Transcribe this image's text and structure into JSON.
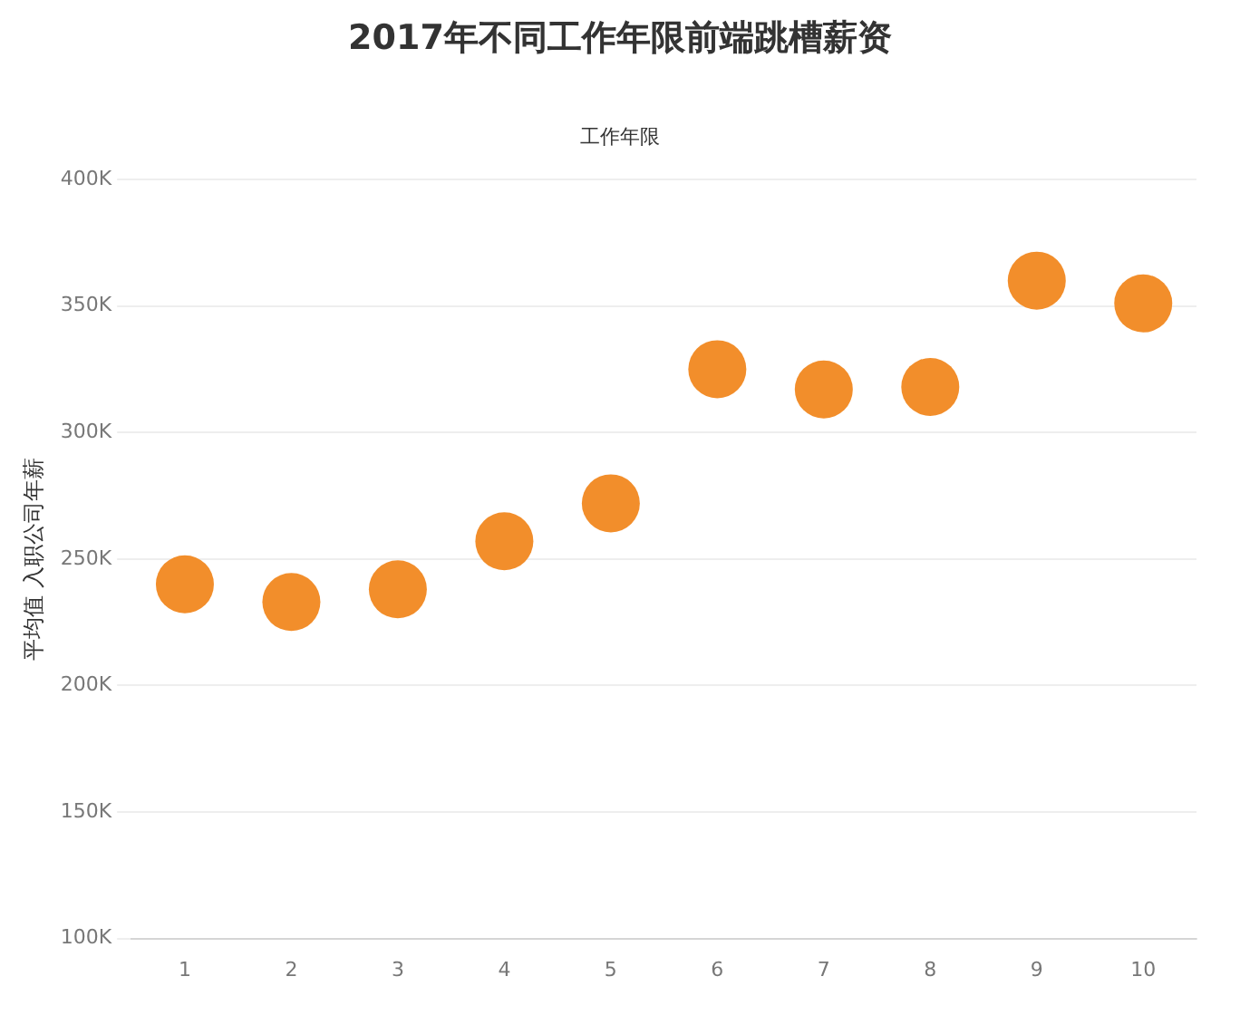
{
  "chart_data": {
    "type": "scatter",
    "title": "2017年不同工作年限前端跳槽薪资",
    "xlabel": "工作年限",
    "ylabel": "平均值 入职公司年薪",
    "categories": [
      "1",
      "2",
      "3",
      "4",
      "5",
      "6",
      "7",
      "8",
      "9",
      "10"
    ],
    "values": [
      240000,
      233000,
      238000,
      257000,
      272000,
      325000,
      317000,
      318000,
      360000,
      351000
    ],
    "color": "#f28e2b",
    "marker": "circle",
    "grid": "y",
    "legend": false,
    "ylim": [
      100000,
      400000
    ],
    "yticks": [
      {
        "value": 100000,
        "label": "100K"
      },
      {
        "value": 150000,
        "label": "150K"
      },
      {
        "value": 200000,
        "label": "200K"
      },
      {
        "value": 250000,
        "label": "250K"
      },
      {
        "value": 300000,
        "label": "300K"
      },
      {
        "value": 350000,
        "label": "350K"
      },
      {
        "value": 400000,
        "label": "400K"
      }
    ]
  }
}
